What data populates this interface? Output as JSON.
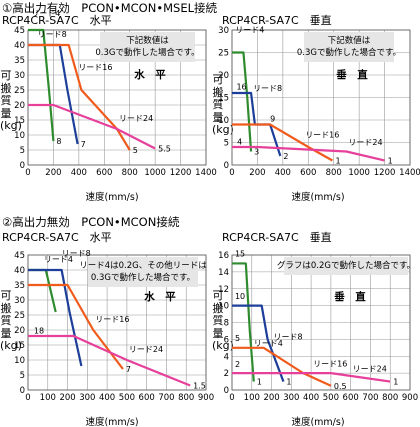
{
  "section1": {
    "title": "①高出力有効　PCON•MCON•MSEL接続"
  },
  "section2": {
    "title": "②高出力無効　PCON•MCON接続"
  },
  "colors": {
    "lead4": "#2e8b2e",
    "lead8": "#1d3f9a",
    "lead16": "#f05a1a",
    "lead24": "#e6409a",
    "grid": "#9a9a9a",
    "notebox": "#e6e6e6"
  },
  "chart_data": [
    {
      "type": "line",
      "title": "RCP4CR-SA7C　水平",
      "xlabel": "速度(mm/s)",
      "ylabel": "可搬質量(kg)",
      "xlim": [
        0,
        1400
      ],
      "ylim": [
        0,
        45
      ],
      "xticks": [
        0,
        200,
        400,
        600,
        800,
        1000,
        1200,
        1400
      ],
      "yticks": [
        0,
        5,
        10,
        15,
        20,
        25,
        30,
        35,
        40,
        45
      ],
      "grid": true,
      "note": [
        "下記数値は",
        "0.3Gで動作した場合です。"
      ],
      "orientation": "水　平",
      "series": [
        {
          "name": "リード4",
          "color_key": "lead4",
          "x": [
            0,
            120,
            165,
            200
          ],
          "y": [
            45,
            45,
            25,
            8
          ],
          "end_label": "8"
        },
        {
          "name": "リード8",
          "color_key": "lead8",
          "x": [
            0,
            250,
            310,
            390
          ],
          "y": [
            40,
            40,
            25,
            7
          ],
          "end_label": "7"
        },
        {
          "name": "リード16",
          "color_key": "lead16",
          "x": [
            0,
            320,
            420,
            700,
            800
          ],
          "y": [
            40,
            40,
            25,
            12,
            5
          ],
          "end_label": "5"
        },
        {
          "name": "リード24",
          "color_key": "lead24",
          "x": [
            0,
            200,
            700,
            1000
          ],
          "y": [
            20,
            20,
            12,
            5.5
          ],
          "end_label": "5.5"
        }
      ]
    },
    {
      "type": "line",
      "title": "RCP4CR-SA7C　垂直",
      "xlabel": "速度(mm/s)",
      "ylabel": "可搬質量(kg)",
      "xlim": [
        0,
        1400
      ],
      "ylim": [
        0,
        30
      ],
      "xticks": [
        0,
        200,
        400,
        600,
        800,
        1000,
        1200,
        1400
      ],
      "yticks": [
        0,
        5,
        10,
        15,
        20,
        25,
        30
      ],
      "grid": true,
      "note": [
        "下記数値は",
        "0.3Gで動作した場合です。"
      ],
      "orientation": "垂　直",
      "series": [
        {
          "name": "リード4",
          "color_key": "lead4",
          "x": [
            0,
            90,
            120,
            150
          ],
          "y": [
            25,
            25,
            15,
            3
          ],
          "end_label": "3"
        },
        {
          "name": "リード8",
          "color_key": "lead8",
          "x": [
            0,
            150,
            180,
            300,
            380
          ],
          "y": [
            16,
            16,
            9,
            9,
            2
          ],
          "end_label": "2"
        },
        {
          "name": "リード16",
          "color_key": "lead16",
          "x": [
            0,
            300,
            600,
            790
          ],
          "y": [
            9,
            9,
            4,
            1
          ],
          "end_label": "1"
        },
        {
          "name": "リード24",
          "color_key": "lead24",
          "x": [
            0,
            200,
            900,
            1200
          ],
          "y": [
            4,
            4,
            3,
            1
          ],
          "end_label": "1"
        }
      ],
      "point_labels": [
        {
          "text": "16",
          "x": 35,
          "y": 16.8
        },
        {
          "text": "9",
          "x": 300,
          "y": 9.7
        },
        {
          "text": "4",
          "x": 40,
          "y": 4.6
        }
      ]
    },
    {
      "type": "line",
      "title": "RCP4CR-SA7C　水平",
      "xlabel": "速度(mm/s)",
      "ylabel": "可搬質量(kg)",
      "xlim": [
        0,
        900
      ],
      "ylim": [
        0,
        45
      ],
      "xticks": [
        0,
        100,
        200,
        300,
        400,
        500,
        600,
        700,
        800,
        900
      ],
      "yticks": [
        0,
        5,
        10,
        15,
        20,
        25,
        30,
        35,
        40,
        45
      ],
      "grid": true,
      "note": [
        "リード4は0.2G、その他リードは",
        "0.3Gで動作した場合です。"
      ],
      "orientation": "水　平",
      "series": [
        {
          "name": "リード4",
          "color_key": "lead4",
          "x": [
            0,
            90,
            140
          ],
          "y": [
            40,
            40,
            26
          ],
          "end_label": ""
        },
        {
          "name": "リード8",
          "color_key": "lead8",
          "x": [
            0,
            170,
            210,
            270
          ],
          "y": [
            40,
            40,
            26,
            8
          ],
          "end_label": ""
        },
        {
          "name": "リード16",
          "color_key": "lead16",
          "x": [
            0,
            200,
            330,
            480
          ],
          "y": [
            35,
            35,
            20,
            7
          ],
          "end_label": "7"
        },
        {
          "name": "リード24",
          "color_key": "lead24",
          "x": [
            0,
            230,
            500,
            820
          ],
          "y": [
            18,
            18,
            10,
            1.5
          ],
          "end_label": "1.5"
        }
      ],
      "point_labels": [
        {
          "text": "18",
          "x": 30,
          "y": 18.8
        }
      ]
    },
    {
      "type": "line",
      "title": "RCP4CR-SA7C　垂直",
      "xlabel": "速度(mm/s)",
      "ylabel": "可搬質量(kg)",
      "xlim": [
        0,
        900
      ],
      "ylim": [
        0,
        16
      ],
      "xticks": [
        0,
        100,
        200,
        300,
        400,
        500,
        600,
        700,
        800,
        900
      ],
      "yticks": [
        0,
        2,
        4,
        6,
        8,
        10,
        12,
        14,
        16
      ],
      "grid": true,
      "note": [
        "グラフは0.2Gで動作した場合です。"
      ],
      "orientation": "垂　直",
      "series": [
        {
          "name": "リード4",
          "color_key": "lead4",
          "x": [
            0,
            70,
            90,
            110
          ],
          "y": [
            15,
            15,
            7,
            1
          ],
          "end_label": "1"
        },
        {
          "name": "リード8",
          "color_key": "lead8",
          "x": [
            0,
            150,
            180,
            260
          ],
          "y": [
            10,
            10,
            6,
            1
          ],
          "end_label": "1"
        },
        {
          "name": "リード16",
          "color_key": "lead16",
          "x": [
            0,
            160,
            360,
            500
          ],
          "y": [
            5,
            5,
            2,
            0.5
          ],
          "end_label": "0.5"
        },
        {
          "name": "リード24",
          "color_key": "lead24",
          "x": [
            0,
            500,
            800
          ],
          "y": [
            2,
            2,
            1
          ],
          "end_label": "1"
        }
      ],
      "point_labels": [
        {
          "text": "15",
          "x": 15,
          "y": 15.8
        },
        {
          "text": "10",
          "x": 15,
          "y": 10.8
        },
        {
          "text": "5",
          "x": 15,
          "y": 5.8
        },
        {
          "text": "2",
          "x": 15,
          "y": 2.7
        }
      ]
    }
  ]
}
